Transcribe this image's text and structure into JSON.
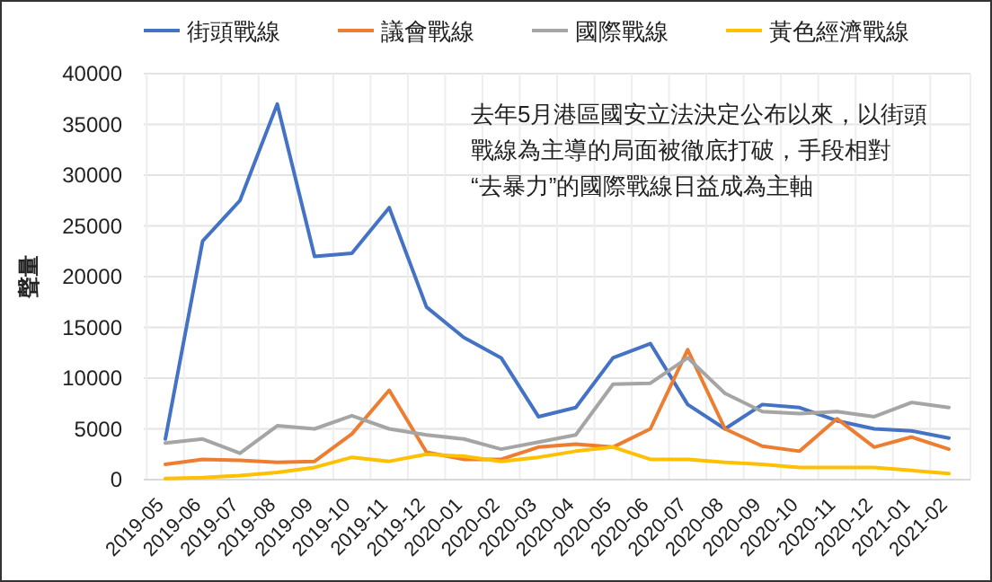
{
  "chart_data": {
    "type": "line",
    "ylabel": "聲量",
    "categories": [
      "2019-05",
      "2019-06",
      "2019-07",
      "2019-08",
      "2019-09",
      "2019-10",
      "2019-11",
      "2019-12",
      "2020-01",
      "2020-02",
      "2020-03",
      "2020-04",
      "2020-05",
      "2020-06",
      "2020-07",
      "2020-08",
      "2020-09",
      "2020-10",
      "2020-11",
      "2020-12",
      "2021-01",
      "2021-02"
    ],
    "series": [
      {
        "name": "街頭戰線",
        "color": "#4472c4",
        "values": [
          4000,
          23500,
          27500,
          37000,
          22000,
          22300,
          26800,
          17000,
          14000,
          12000,
          6200,
          7100,
          12000,
          13400,
          7400,
          5000,
          7400,
          7100,
          5800,
          5000,
          4800,
          4100
        ]
      },
      {
        "name": "議會戰線",
        "color": "#ed7d31",
        "values": [
          1500,
          2000,
          1900,
          1700,
          1800,
          4500,
          8800,
          2700,
          2000,
          2000,
          3200,
          3500,
          3200,
          5000,
          12800,
          5000,
          3300,
          2800,
          6000,
          3200,
          4200,
          3000
        ]
      },
      {
        "name": "國際戰線",
        "color": "#a5a5a5",
        "values": [
          3600,
          4000,
          2600,
          5300,
          5000,
          6300,
          5000,
          4400,
          4000,
          3000,
          3700,
          4400,
          9400,
          9500,
          12000,
          8500,
          6700,
          6500,
          6700,
          6200,
          7600,
          7100
        ]
      },
      {
        "name": "黃色經濟戰線",
        "color": "#ffc000",
        "values": [
          100,
          200,
          400,
          700,
          1200,
          2200,
          1800,
          2500,
          2300,
          1800,
          2200,
          2800,
          3200,
          2000,
          2000,
          1700,
          1500,
          1200,
          1200,
          1200,
          900,
          600
        ]
      }
    ],
    "ylim": [
      0,
      40000
    ],
    "yticks": [
      0,
      5000,
      10000,
      15000,
      20000,
      25000,
      30000,
      35000,
      40000
    ],
    "grid": true,
    "legend": "top",
    "marker": "none",
    "line_style": "solid",
    "annotations": [
      "去年5月港區國安立法決定公布以來，以街頭戰線為主導的局面被徹底打破，手段相對“去暴力”的國際戰線日益成為主軸"
    ]
  }
}
